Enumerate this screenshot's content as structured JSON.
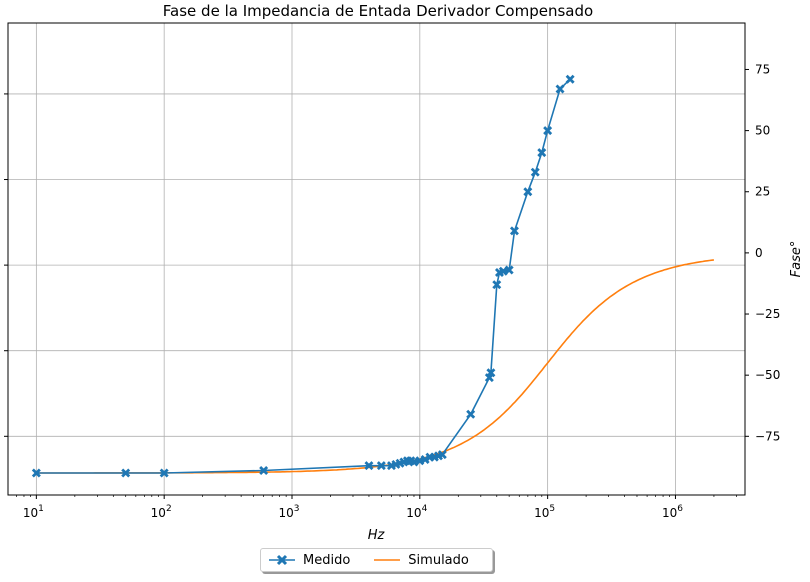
{
  "chart_data": {
    "type": "line",
    "title": "Fase de la Impedancia de Entada Derivador Compensado",
    "xlabel": "Hz",
    "ylabel": "Fase°",
    "x_scale": "log",
    "xlim": [
      6,
      3500000
    ],
    "ylim": [
      -99,
      94
    ],
    "x_tick_labels": [
      "10",
      "10",
      "10",
      "10",
      "10",
      "10"
    ],
    "x_tick_exponents": [
      "1",
      "2",
      "3",
      "4",
      "5",
      "6"
    ],
    "x_tick_values": [
      10,
      100,
      1000,
      10000,
      100000,
      1000000
    ],
    "y_ticks": [
      75,
      50,
      25,
      0,
      -25,
      -50,
      -75
    ],
    "y_tick_labels": [
      "75",
      "50",
      "25",
      "0",
      "−25",
      "−50",
      "−75"
    ],
    "left_ticks_values": [
      -75,
      -40,
      -5,
      30,
      65
    ],
    "grid": true,
    "legend_position": "bottom-center",
    "series": [
      {
        "name": "Medido",
        "color": "#1f77b4",
        "marker": "x-filled",
        "x": [
          10,
          50,
          100,
          600,
          4000,
          5000,
          6000,
          6500,
          7000,
          7500,
          8000,
          8500,
          9000,
          10000,
          11000,
          12000,
          13000,
          14000,
          15000,
          25000,
          35000,
          36000,
          40000,
          42000,
          45000,
          50000,
          55000,
          70000,
          80000,
          90000,
          100000,
          125000,
          150000
        ],
        "y": [
          -90,
          -90,
          -90,
          -89,
          -87,
          -87,
          -87,
          -86.5,
          -86,
          -85.5,
          -85,
          -85,
          -85.5,
          -85,
          -84.5,
          -83.5,
          -83.5,
          -83,
          -82.5,
          -66,
          -51,
          -49,
          -13,
          -8,
          -7.5,
          -7,
          9,
          25,
          33,
          41,
          50,
          67,
          71
        ]
      },
      {
        "name": "Simulado",
        "color": "#ff7f0e",
        "fc": 100000,
        "x_range": [
          10,
          2000000
        ]
      }
    ]
  }
}
